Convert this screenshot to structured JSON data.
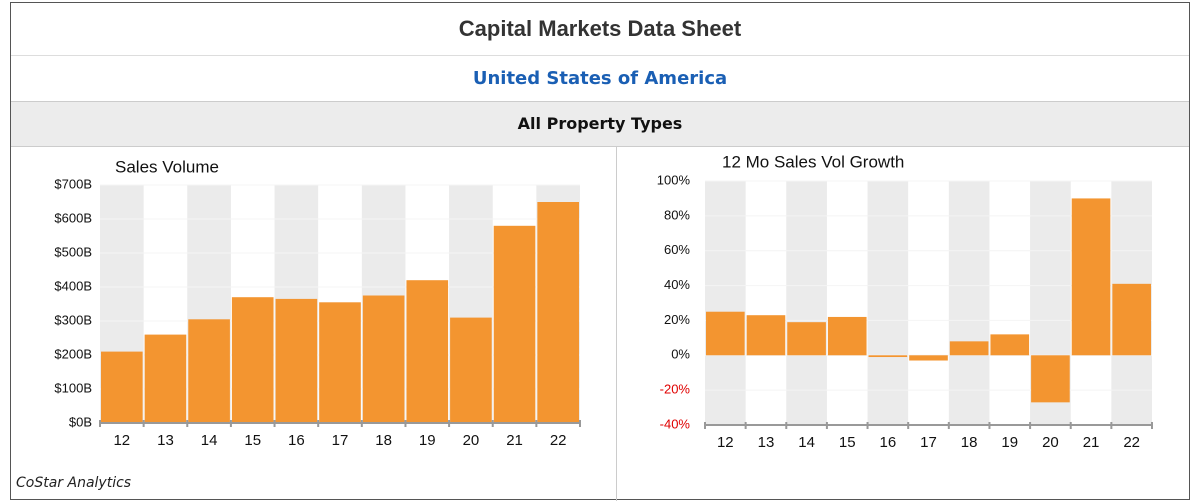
{
  "header": {
    "title": "Capital Markets Data Sheet",
    "subtitle": "United States of America",
    "section": "All Property Types"
  },
  "footer": "CoStar Analytics",
  "chart_data": [
    {
      "type": "bar",
      "title": "Sales Volume",
      "categories": [
        "12",
        "13",
        "14",
        "15",
        "16",
        "17",
        "18",
        "19",
        "20",
        "21",
        "22"
      ],
      "values": [
        210,
        260,
        305,
        370,
        365,
        355,
        375,
        420,
        310,
        580,
        650
      ],
      "color": "#f39530",
      "band_color": "#ebebeb",
      "ylim": [
        0,
        700
      ],
      "yticks": [
        {
          "value": 0,
          "label": "$0B"
        },
        {
          "value": 100,
          "label": "$100B"
        },
        {
          "value": 200,
          "label": "$200B"
        },
        {
          "value": 300,
          "label": "$300B"
        },
        {
          "value": 400,
          "label": "$400B"
        },
        {
          "value": 500,
          "label": "$500B"
        },
        {
          "value": 600,
          "label": "$600B"
        },
        {
          "value": 700,
          "label": "$700B"
        }
      ],
      "grid": true
    },
    {
      "type": "bar",
      "title": "12 Mo Sales Vol Growth",
      "categories": [
        "12",
        "13",
        "14",
        "15",
        "16",
        "17",
        "18",
        "19",
        "20",
        "21",
        "22"
      ],
      "values": [
        25,
        23,
        19,
        22,
        -1,
        -3,
        8,
        12,
        -27,
        90,
        41
      ],
      "color": "#f39530",
      "band_color": "#ebebeb",
      "negative_tick_color": "#e00000",
      "ylim": [
        -40,
        100
      ],
      "yticks": [
        {
          "value": -40,
          "label": "-40%"
        },
        {
          "value": -20,
          "label": "-20%"
        },
        {
          "value": 0,
          "label": "0%"
        },
        {
          "value": 20,
          "label": "20%"
        },
        {
          "value": 40,
          "label": "40%"
        },
        {
          "value": 60,
          "label": "60%"
        },
        {
          "value": 80,
          "label": "80%"
        },
        {
          "value": 100,
          "label": "100%"
        }
      ],
      "grid": true
    }
  ]
}
